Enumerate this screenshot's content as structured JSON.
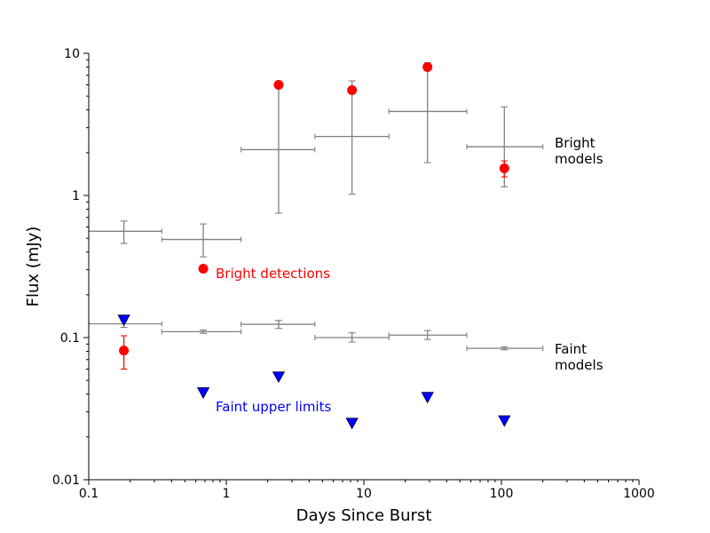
{
  "chart_data": {
    "type": "scatter",
    "xscale": "log",
    "yscale": "log",
    "xlim": [
      0.1,
      1000
    ],
    "ylim": [
      0.01,
      10
    ],
    "xlabel": "Days Since Burst",
    "ylabel": "Flux (mJy)",
    "x_ticks": [
      {
        "value": 0.1,
        "label": "0.1"
      },
      {
        "value": 1,
        "label": "1"
      },
      {
        "value": 10,
        "label": "10"
      },
      {
        "value": 100,
        "label": "100"
      },
      {
        "value": 1000,
        "label": "1000"
      }
    ],
    "y_ticks": [
      {
        "value": 0.01,
        "label": "0.01"
      },
      {
        "value": 0.1,
        "label": "0.1"
      },
      {
        "value": 1,
        "label": "1"
      },
      {
        "value": 10,
        "label": "10"
      }
    ],
    "bright_models": [
      {
        "x": 0.18,
        "xmin": 0.1,
        "xmax": 0.34,
        "y": 0.56,
        "ylo": 0.46,
        "yhi": 0.66
      },
      {
        "x": 0.68,
        "xmin": 0.34,
        "xmax": 1.28,
        "y": 0.49,
        "ylo": 0.37,
        "yhi": 0.63
      },
      {
        "x": 2.4,
        "xmin": 1.28,
        "xmax": 4.4,
        "y": 2.1,
        "ylo": 0.75,
        "yhi": 6.1
      },
      {
        "x": 8.2,
        "xmin": 4.4,
        "xmax": 15.2,
        "y": 2.6,
        "ylo": 1.02,
        "yhi": 6.4
      },
      {
        "x": 29,
        "xmin": 15.2,
        "xmax": 56,
        "y": 3.9,
        "ylo": 1.7,
        "yhi": 8.6
      },
      {
        "x": 105,
        "xmin": 56,
        "xmax": 200,
        "y": 2.2,
        "ylo": 1.15,
        "yhi": 4.2
      }
    ],
    "faint_models": [
      {
        "x": 0.18,
        "xmin": 0.1,
        "xmax": 0.34,
        "y": 0.125,
        "ylo": 0.118,
        "yhi": 0.131
      },
      {
        "x": 0.68,
        "xmin": 0.34,
        "xmax": 1.28,
        "y": 0.11,
        "ylo": 0.107,
        "yhi": 0.113
      },
      {
        "x": 2.4,
        "xmin": 1.28,
        "xmax": 4.4,
        "y": 0.124,
        "ylo": 0.116,
        "yhi": 0.132
      },
      {
        "x": 8.2,
        "xmin": 4.4,
        "xmax": 15.2,
        "y": 0.1,
        "ylo": 0.093,
        "yhi": 0.108
      },
      {
        "x": 29,
        "xmin": 15.2,
        "xmax": 56,
        "y": 0.104,
        "ylo": 0.097,
        "yhi": 0.112
      },
      {
        "x": 105,
        "xmin": 56,
        "xmax": 200,
        "y": 0.084,
        "ylo": 0.082,
        "yhi": 0.086
      }
    ],
    "bright_detections": [
      {
        "x": 0.18,
        "y": 0.081,
        "ylo": 0.06,
        "yhi": 0.103
      },
      {
        "x": 0.68,
        "y": 0.305
      },
      {
        "x": 2.4,
        "y": 6.0,
        "ylo": 5.8,
        "yhi": 6.2
      },
      {
        "x": 8.2,
        "y": 5.5,
        "ylo": 5.2,
        "yhi": 5.8
      },
      {
        "x": 29,
        "y": 8.0,
        "ylo": 7.6,
        "yhi": 8.4
      },
      {
        "x": 105,
        "y": 1.55,
        "ylo": 1.35,
        "yhi": 1.75
      }
    ],
    "faint_upper_limits": [
      {
        "x": 0.18,
        "y": 0.133
      },
      {
        "x": 0.68,
        "y": 0.041
      },
      {
        "x": 2.4,
        "y": 0.053
      },
      {
        "x": 8.2,
        "y": 0.025
      },
      {
        "x": 29,
        "y": 0.038
      },
      {
        "x": 105,
        "y": 0.026
      }
    ],
    "annotations": {
      "bright_models_line1": "Bright",
      "bright_models_line2": "models",
      "faint_models_line1": "Faint",
      "faint_models_line2": "models",
      "bright_detections": "Bright detections",
      "faint_upper_limits": "Faint upper limits"
    },
    "colors": {
      "model": "#808080",
      "detection": "#ff0000",
      "upper_limit": "#0000ff",
      "axis": "#000000",
      "label_text": "#000000"
    }
  }
}
